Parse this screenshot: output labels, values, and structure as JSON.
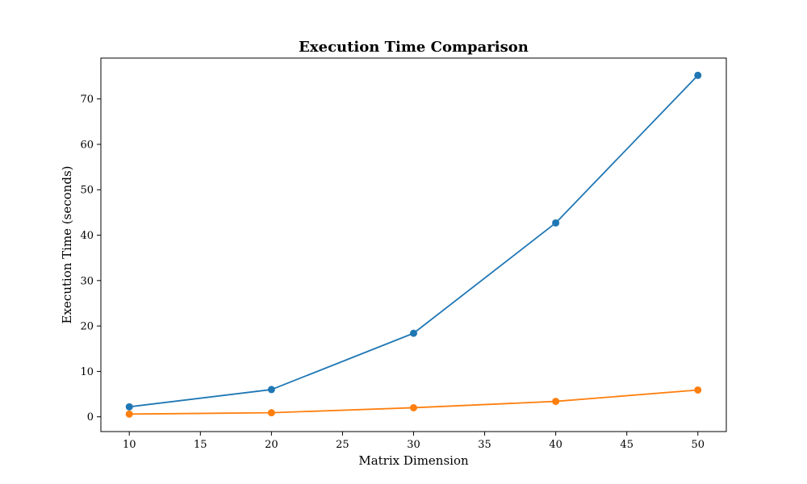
{
  "chart_data": {
    "type": "line",
    "title": "Execution Time Comparison",
    "xlabel": "Matrix Dimension",
    "ylabel": "Execution Time (seconds)",
    "x": [
      10,
      20,
      30,
      40,
      50
    ],
    "series": [
      {
        "values": [
          2.2,
          6.0,
          18.4,
          42.7,
          75.2
        ],
        "color": "#1f77b4"
      },
      {
        "values": [
          0.6,
          0.9,
          2.0,
          3.4,
          5.9
        ],
        "color": "#ff7f0e"
      }
    ],
    "xlim": [
      8,
      52
    ],
    "ylim": [
      -3.25,
      79
    ],
    "xticks": [
      10,
      15,
      20,
      25,
      30,
      35,
      40,
      45,
      50
    ],
    "yticks": [
      0,
      10,
      20,
      30,
      40,
      50,
      60,
      70
    ],
    "grid": false,
    "markers": true
  }
}
